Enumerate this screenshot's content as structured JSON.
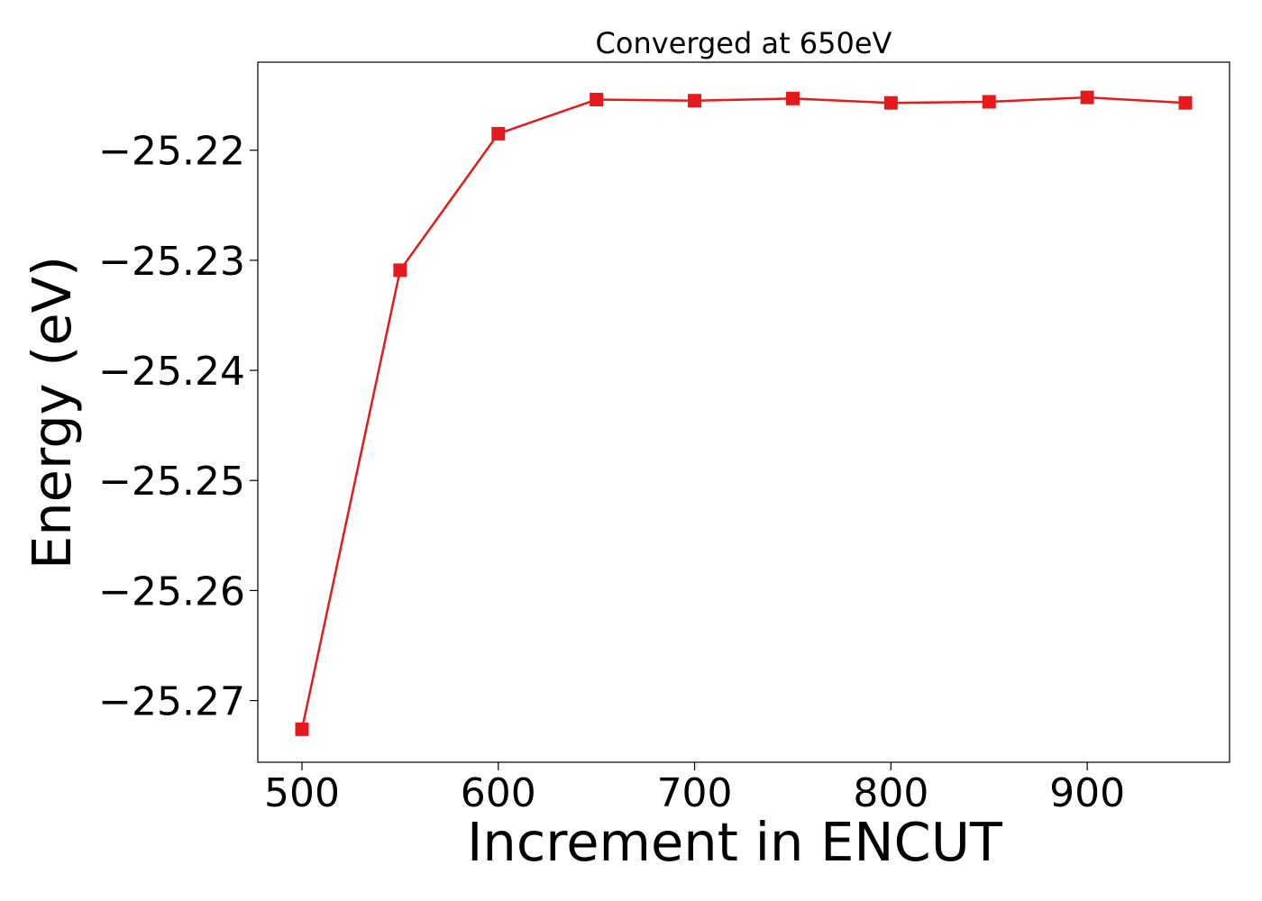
{
  "chart_data": {
    "type": "line",
    "title": "Converged at 650eV",
    "xlabel": "Increment in ENCUT",
    "ylabel": "Energy (eV)",
    "x": [
      500,
      550,
      600,
      650,
      700,
      750,
      800,
      850,
      900,
      950
    ],
    "series": [
      {
        "values": [
          -25.2726,
          -25.2309,
          -25.2185,
          -25.2154,
          -25.2155,
          -25.2153,
          -25.2157,
          -25.2156,
          -25.2152,
          -25.2157
        ],
        "color": "#e41a1c",
        "marker": "square"
      }
    ],
    "xlim": [
      477.5,
      972.5
    ],
    "ylim": [
      -25.2756,
      -25.212
    ],
    "xticks": [
      500,
      600,
      700,
      800,
      900
    ],
    "xtick_labels": [
      "500",
      "600",
      "700",
      "800",
      "900"
    ],
    "yticks": [
      -25.27,
      -25.26,
      -25.25,
      -25.24,
      -25.23,
      -25.22
    ],
    "ytick_labels": [
      "−25.27",
      "−25.26",
      "−25.25",
      "−25.24",
      "−25.23",
      "−25.22"
    ],
    "grid": false,
    "legend": "none"
  }
}
